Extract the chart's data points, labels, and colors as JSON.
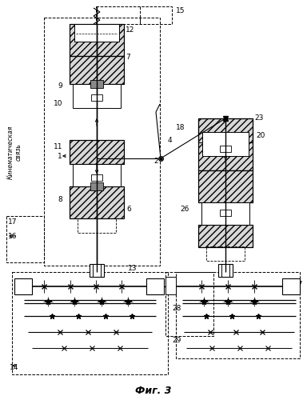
{
  "title": "Фиг. 3",
  "background": "#ffffff",
  "lc": "#000000",
  "fig_width": 3.84,
  "fig_height": 5.0,
  "dpi": 100
}
